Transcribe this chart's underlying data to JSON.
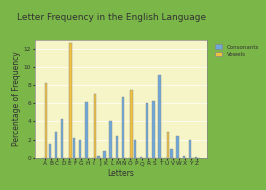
{
  "title": "Letter Frequency in the English Language",
  "xlabel": "Letters",
  "ylabel": "Percentage of Frequency",
  "letters": [
    "A",
    "B",
    "C",
    "D",
    "E",
    "F",
    "G",
    "H",
    "I",
    "J",
    "K",
    "L",
    "M",
    "N",
    "O",
    "P",
    "Q",
    "R",
    "S",
    "T",
    "U",
    "V",
    "W",
    "X",
    "Y",
    "Z"
  ],
  "consonants": [
    0,
    1.5,
    2.8,
    4.3,
    0,
    2.2,
    2.0,
    6.1,
    0,
    0.15,
    0.77,
    4.0,
    2.4,
    6.7,
    0,
    1.9,
    0.1,
    6.0,
    6.3,
    9.1,
    0,
    1.0,
    2.4,
    0.15,
    2.0,
    0.07
  ],
  "vowels": [
    8.2,
    0,
    0,
    0,
    12.7,
    0,
    0,
    0,
    7.0,
    0,
    0,
    0,
    0,
    0,
    7.5,
    0,
    0,
    0,
    0,
    0,
    2.8,
    0,
    0,
    0,
    0,
    0
  ],
  "consonant_color": "#6fa8d8",
  "vowel_color": "#f0c040",
  "bg_color": "#f5f5c8",
  "outer_bg": "#7ab648",
  "ylim": [
    0,
    13
  ],
  "yticks": [
    0,
    2,
    4,
    6,
    8,
    10,
    12
  ],
  "legend_labels": [
    "Consonants",
    "Vowels"
  ],
  "title_fontsize": 6.5,
  "axis_fontsize": 5.5,
  "tick_fontsize": 4.2
}
